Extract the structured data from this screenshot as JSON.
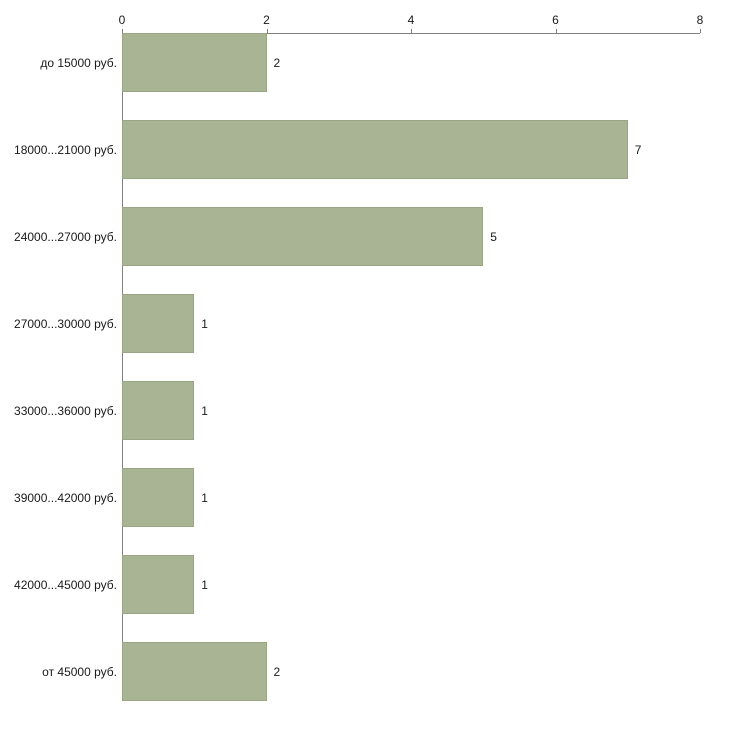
{
  "chart_data": {
    "type": "bar",
    "orientation": "horizontal",
    "title": "",
    "xlabel": "",
    "ylabel": "",
    "categories": [
      "до 15000 руб.",
      "18000...21000 руб.",
      "24000...27000 руб.",
      "27000...30000 руб.",
      "33000...36000 руб.",
      "39000...42000 руб.",
      "42000...45000 руб.",
      "от 45000 руб."
    ],
    "values": [
      2,
      7,
      5,
      1,
      1,
      1,
      1,
      2
    ],
    "value_labels": [
      "2",
      "7",
      "5",
      "1",
      "1",
      "1",
      "1",
      "2"
    ],
    "xlim": [
      0,
      8
    ],
    "x_ticks": [
      "0",
      "2",
      "4",
      "6",
      "8"
    ],
    "grid": false,
    "legend": false,
    "axis_position": "top",
    "colors": {
      "bar_fill": "#a9b494",
      "bar_border": "#9aa583",
      "axis": "#808080",
      "text": "#1a1a1a",
      "background": "#ffffff"
    }
  }
}
